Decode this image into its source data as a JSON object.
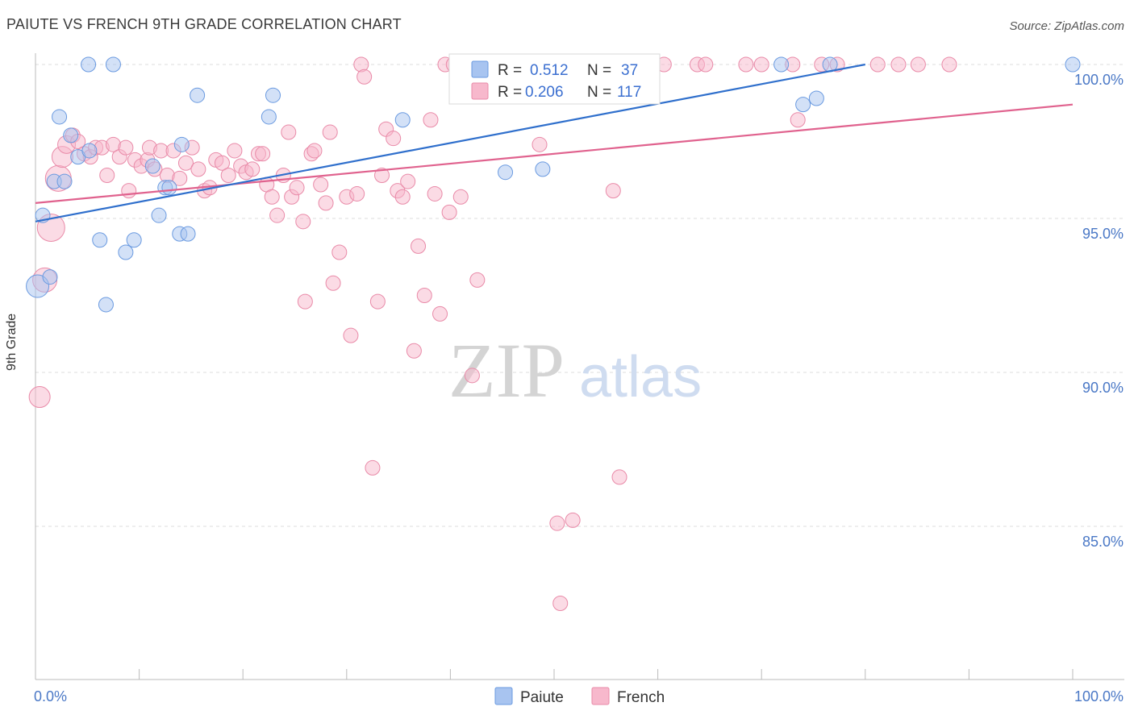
{
  "title": "PAIUTE VS FRENCH 9TH GRADE CORRELATION CHART",
  "source": "Source: ZipAtlas.com",
  "watermark": {
    "zip": "ZIP",
    "atlas": "atlas"
  },
  "legend_box": {
    "rows": [
      {
        "r_label": "R =",
        "r_value": "0.512",
        "n_label": "N =",
        "n_value": "37"
      },
      {
        "r_label": "R =",
        "r_value": "0.206",
        "n_label": "N =",
        "n_value": "117"
      }
    ]
  },
  "colors": {
    "paiute_fill": "#a8c4f0",
    "paiute_stroke": "#6a9ae0",
    "paiute_line": "#2f6fcc",
    "french_fill": "#f7b8cc",
    "french_stroke": "#e98aa8",
    "french_line": "#e0628e",
    "tick_text": "#4a78c6",
    "grid": "#dddddd"
  },
  "chart_data": {
    "type": "scatter",
    "xlabel": "",
    "ylabel": "9th Grade",
    "xlim": [
      0,
      100
    ],
    "ylim": [
      80.5,
      100.8
    ],
    "x_tick_labels": [
      "0.0%",
      "100.0%"
    ],
    "y_ticks": [
      85,
      90,
      95,
      100
    ],
    "y_tick_labels": [
      "85.0%",
      "90.0%",
      "95.0%",
      "100.0%"
    ],
    "grid": true,
    "legend_position": "bottom-center",
    "series": [
      {
        "name": "Paiute",
        "r": 0.512,
        "n": 37,
        "trend": {
          "x": [
            0,
            80
          ],
          "y": [
            94.9,
            100.0
          ]
        },
        "points": [
          [
            0.2,
            92.8,
            14
          ],
          [
            0.7,
            95.1,
            9
          ],
          [
            1.4,
            93.1,
            9
          ],
          [
            1.8,
            96.2,
            9
          ],
          [
            2.3,
            98.3,
            9
          ],
          [
            2.8,
            96.2,
            9
          ],
          [
            3.4,
            97.7,
            9
          ],
          [
            4.1,
            97.0,
            9
          ],
          [
            5.2,
            97.2,
            9
          ],
          [
            5.1,
            100.0,
            9
          ],
          [
            6.2,
            94.3,
            9
          ],
          [
            6.8,
            92.2,
            9
          ],
          [
            7.5,
            100.0,
            9
          ],
          [
            8.7,
            93.9,
            9
          ],
          [
            9.5,
            94.3,
            9
          ],
          [
            11.3,
            96.7,
            9
          ],
          [
            12.5,
            96.0,
            9
          ],
          [
            11.9,
            95.1,
            9
          ],
          [
            12.9,
            96.0,
            9
          ],
          [
            13.9,
            94.5,
            9
          ],
          [
            14.1,
            97.4,
            9
          ],
          [
            14.7,
            94.5,
            9
          ],
          [
            15.6,
            99.0,
            9
          ],
          [
            22.5,
            98.3,
            9
          ],
          [
            22.9,
            99.0,
            9
          ],
          [
            35.4,
            98.2,
            9
          ],
          [
            45.3,
            96.5,
            9
          ],
          [
            48.9,
            96.6,
            9
          ],
          [
            71.9,
            100.0,
            9
          ],
          [
            74.0,
            98.7,
            9
          ],
          [
            75.3,
            98.9,
            9
          ],
          [
            76.6,
            100.0,
            9
          ],
          [
            100.0,
            100.0,
            9
          ]
        ]
      },
      {
        "name": "French",
        "r": 0.206,
        "n": 117,
        "trend": {
          "x": [
            0,
            100
          ],
          "y": [
            95.5,
            98.7
          ]
        },
        "points": [
          [
            0.4,
            89.2,
            13
          ],
          [
            0.9,
            93.0,
            15
          ],
          [
            1.5,
            94.7,
            17
          ],
          [
            2.2,
            96.3,
            16
          ],
          [
            2.6,
            97.0,
            13
          ],
          [
            3.0,
            97.4,
            11
          ],
          [
            3.6,
            97.7,
            9
          ],
          [
            4.1,
            97.5,
            9
          ],
          [
            4.7,
            97.1,
            9
          ],
          [
            5.3,
            97.0,
            9
          ],
          [
            5.8,
            97.3,
            9
          ],
          [
            6.4,
            97.3,
            9
          ],
          [
            6.9,
            96.4,
            9
          ],
          [
            7.5,
            97.4,
            9
          ],
          [
            8.1,
            97.0,
            9
          ],
          [
            8.7,
            97.3,
            9
          ],
          [
            9.0,
            95.9,
            9
          ],
          [
            9.6,
            96.9,
            9
          ],
          [
            10.2,
            96.7,
            9
          ],
          [
            10.8,
            96.9,
            9
          ],
          [
            11.0,
            97.3,
            9
          ],
          [
            11.5,
            96.6,
            9
          ],
          [
            12.1,
            97.2,
            9
          ],
          [
            12.7,
            96.4,
            9
          ],
          [
            13.3,
            97.2,
            9
          ],
          [
            13.9,
            96.3,
            9
          ],
          [
            14.5,
            96.8,
            9
          ],
          [
            15.1,
            97.3,
            9
          ],
          [
            15.7,
            96.6,
            9
          ],
          [
            16.3,
            95.9,
            9
          ],
          [
            16.8,
            96.0,
            9
          ],
          [
            17.4,
            96.9,
            9
          ],
          [
            18.0,
            96.8,
            9
          ],
          [
            18.6,
            96.4,
            9
          ],
          [
            19.2,
            97.2,
            9
          ],
          [
            19.8,
            96.7,
            9
          ],
          [
            20.3,
            96.5,
            9
          ],
          [
            20.9,
            96.6,
            9
          ],
          [
            21.5,
            97.1,
            9
          ],
          [
            21.9,
            97.1,
            9
          ],
          [
            22.3,
            96.1,
            9
          ],
          [
            22.8,
            95.7,
            9
          ],
          [
            23.3,
            95.1,
            9
          ],
          [
            23.9,
            96.4,
            9
          ],
          [
            24.4,
            97.8,
            9
          ],
          [
            24.7,
            95.7,
            9
          ],
          [
            25.2,
            96.0,
            9
          ],
          [
            25.8,
            94.9,
            9
          ],
          [
            26.0,
            92.3,
            9
          ],
          [
            26.6,
            97.1,
            9
          ],
          [
            26.9,
            97.2,
            9
          ],
          [
            27.5,
            96.1,
            9
          ],
          [
            28.0,
            95.5,
            9
          ],
          [
            28.4,
            97.8,
            9
          ],
          [
            28.7,
            92.9,
            9
          ],
          [
            29.3,
            93.9,
            9
          ],
          [
            30.0,
            95.7,
            9
          ],
          [
            30.4,
            91.2,
            9
          ],
          [
            31.0,
            95.8,
            9
          ],
          [
            31.4,
            100.0,
            9
          ],
          [
            31.7,
            99.6,
            9
          ],
          [
            32.5,
            86.9,
            9
          ],
          [
            33.0,
            92.3,
            9
          ],
          [
            33.4,
            96.4,
            9
          ],
          [
            33.8,
            97.9,
            9
          ],
          [
            34.5,
            97.6,
            9
          ],
          [
            34.9,
            95.9,
            9
          ],
          [
            35.4,
            95.7,
            9
          ],
          [
            35.9,
            96.2,
            9
          ],
          [
            36.5,
            90.7,
            9
          ],
          [
            36.9,
            94.1,
            9
          ],
          [
            37.5,
            92.5,
            9
          ],
          [
            38.1,
            98.2,
            9
          ],
          [
            38.5,
            95.8,
            9
          ],
          [
            39.0,
            91.9,
            9
          ],
          [
            39.5,
            100.0,
            9
          ],
          [
            39.9,
            95.2,
            9
          ],
          [
            40.3,
            100.0,
            9
          ],
          [
            41.0,
            95.7,
            9
          ],
          [
            41.6,
            99.4,
            9
          ],
          [
            42.1,
            89.9,
            9
          ],
          [
            42.6,
            93.0,
            9
          ],
          [
            43.0,
            100.0,
            9
          ],
          [
            43.8,
            100.0,
            9
          ],
          [
            44.5,
            100.0,
            9
          ],
          [
            45.2,
            100.0,
            9
          ],
          [
            46.0,
            100.0,
            9
          ],
          [
            47.1,
            100.0,
            9
          ],
          [
            48.6,
            97.4,
            9
          ],
          [
            49.4,
            100.0,
            9
          ],
          [
            50.0,
            100.0,
            9
          ],
          [
            50.3,
            85.1,
            9
          ],
          [
            51.8,
            85.2,
            9
          ],
          [
            50.6,
            82.5,
            9
          ],
          [
            54.8,
            100.0,
            9
          ],
          [
            55.7,
            95.9,
            9
          ],
          [
            56.3,
            86.6,
            9
          ],
          [
            58.1,
            100.0,
            9
          ],
          [
            60.6,
            100.0,
            9
          ],
          [
            63.8,
            100.0,
            9
          ],
          [
            64.6,
            100.0,
            9
          ],
          [
            68.5,
            100.0,
            9
          ],
          [
            70.0,
            100.0,
            9
          ],
          [
            73.0,
            100.0,
            9
          ],
          [
            73.5,
            98.2,
            9
          ],
          [
            75.8,
            100.0,
            9
          ],
          [
            77.3,
            100.0,
            9
          ],
          [
            81.2,
            100.0,
            9
          ],
          [
            83.2,
            100.0,
            9
          ],
          [
            85.1,
            100.0,
            9
          ],
          [
            88.1,
            100.0,
            9
          ]
        ]
      }
    ]
  }
}
